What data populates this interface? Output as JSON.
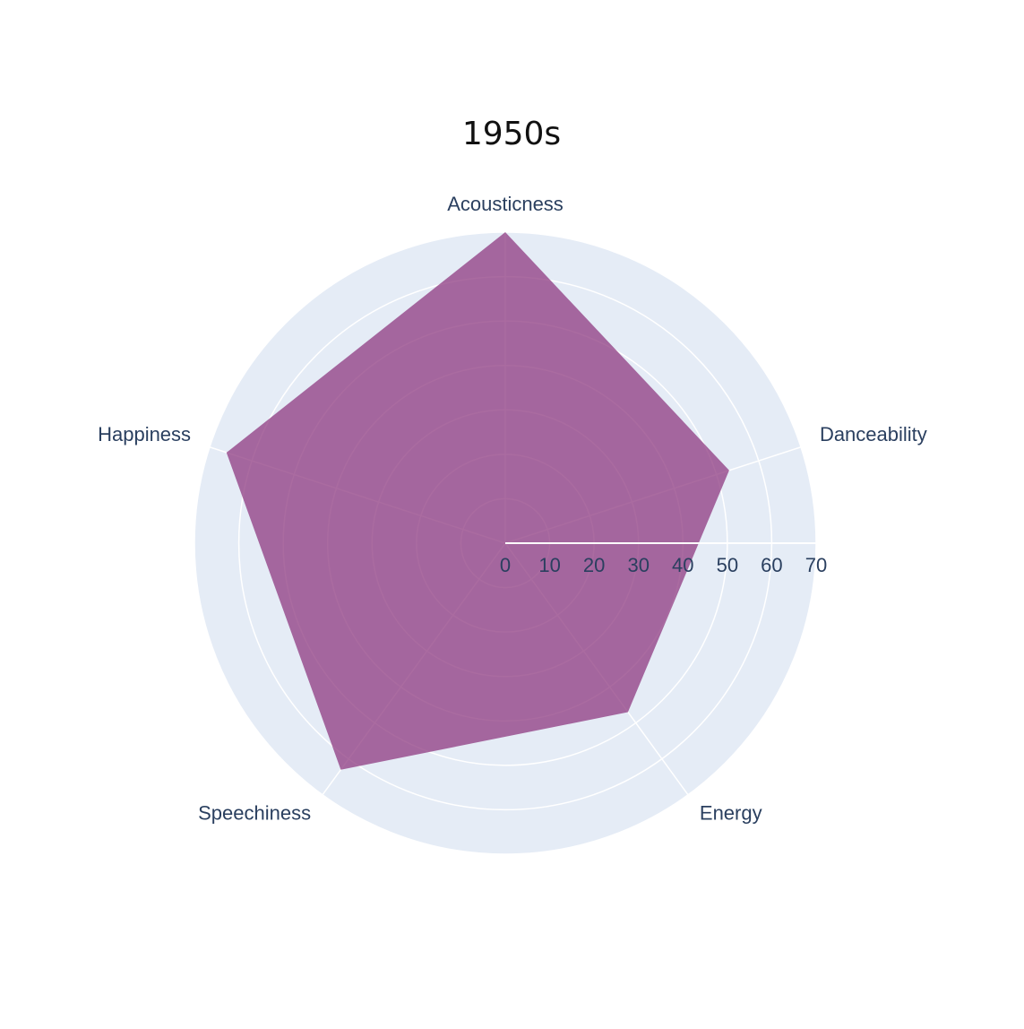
{
  "chart_data": {
    "type": "radar",
    "title": "1950s",
    "categories": [
      "Acousticness",
      "Danceability",
      "Energy",
      "Speechiness",
      "Happiness"
    ],
    "series": [
      {
        "values": [
          70,
          53,
          47,
          63,
          66
        ],
        "color": "#8e3a80"
      }
    ],
    "radial_range": [
      0,
      70
    ],
    "radial_ticks": [
      0,
      10,
      20,
      30,
      40,
      50,
      60,
      70
    ],
    "grid": true,
    "colors": {
      "polar_background": "#e5ecf6",
      "grid": "#ffffff",
      "fill": "#8e3a80",
      "text": "#2a3f5f"
    }
  }
}
